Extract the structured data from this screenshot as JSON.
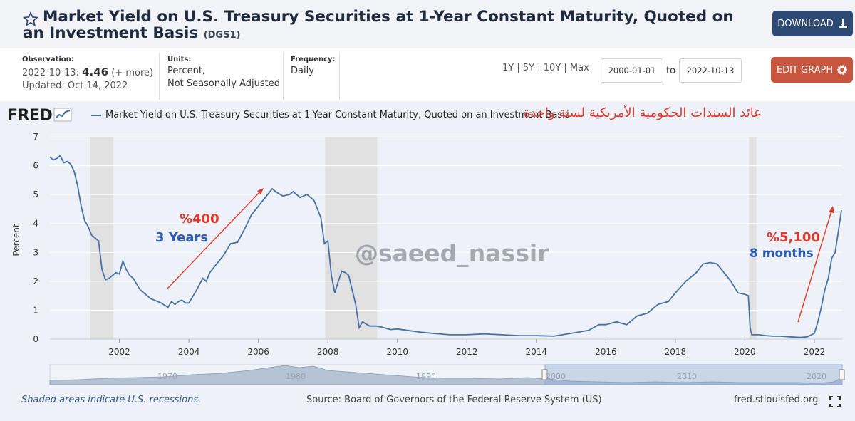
{
  "header": {
    "title": "Market Yield on U.S. Treasury Securities at 1-Year Constant Maturity, Quoted on an Investment Basis",
    "series_id": "(DGS1)",
    "download_label": "DOWNLOAD"
  },
  "meta": {
    "observation_label": "Observation:",
    "observation_date": "2022-10-13:",
    "observation_value": "4.46",
    "observation_more": "(+ more)",
    "updated": "Updated: Oct 14, 2022",
    "units_label": "Units:",
    "units_line1": "Percent,",
    "units_line2": "Not Seasonally Adjusted",
    "frequency_label": "Frequency:",
    "frequency_value": "Daily"
  },
  "controls": {
    "range_1y": "1Y",
    "range_5y": "5Y",
    "range_10y": "10Y",
    "range_max": "Max",
    "start_date": "2000-01-01",
    "to_label": "to",
    "end_date": "2022-10-13",
    "edit_graph_label": "EDIT GRAPH"
  },
  "chart_header": {
    "logo": "FRED",
    "legend_label": "Market Yield on U.S. Treasury Securities at 1-Year Constant Maturity, Quoted on an Investment Basis",
    "arabic_title": "عائد السندات الحكومية الأمريكية لسنة واحدة"
  },
  "annotations": {
    "left_pct": "%400",
    "left_period": "3 Years",
    "watermark": "@saeed_nassir",
    "right_pct": "%5,100",
    "right_period": "8 months"
  },
  "footer": {
    "recession_note": "Shaded areas indicate U.S. recessions.",
    "source": "Source: Board of Governors of the Federal Reserve System (US)",
    "site": "fred.stlouisfed.org"
  },
  "colors": {
    "series": "#4572a7",
    "recession": "#e1e1e1",
    "annotation_red": "#e03a2e",
    "annotation_blue": "#2a5cb8"
  },
  "chart_data": {
    "type": "line",
    "title": "Market Yield on U.S. Treasury Securities at 1-Year Constant Maturity, Quoted on an Investment Basis",
    "xlabel": "",
    "ylabel": "Percent",
    "xlim": [
      2000.0,
      2022.8
    ],
    "ylim": [
      0,
      7
    ],
    "x_ticks": [
      2002,
      2004,
      2006,
      2008,
      2010,
      2012,
      2014,
      2016,
      2018,
      2020,
      2022
    ],
    "y_ticks": [
      0,
      1,
      2,
      3,
      4,
      5,
      6,
      7
    ],
    "recessions": [
      [
        2001.17,
        2001.83
      ],
      [
        2007.92,
        2009.42
      ],
      [
        2020.12,
        2020.33
      ]
    ],
    "navigator_ticks": [
      "1970",
      "1980",
      "1990",
      "2000",
      "2010",
      "2020"
    ],
    "series": [
      {
        "name": "DGS1",
        "x": [
          2000.0,
          2000.1,
          2000.2,
          2000.3,
          2000.4,
          2000.5,
          2000.6,
          2000.7,
          2000.8,
          2000.9,
          2001.0,
          2001.1,
          2001.2,
          2001.3,
          2001.4,
          2001.5,
          2001.6,
          2001.7,
          2001.8,
          2001.9,
          2002.0,
          2002.1,
          2002.2,
          2002.3,
          2002.4,
          2002.5,
          2002.6,
          2002.7,
          2002.8,
          2002.9,
          2003.0,
          2003.2,
          2003.4,
          2003.5,
          2003.6,
          2003.7,
          2003.8,
          2003.9,
          2004.0,
          2004.2,
          2004.4,
          2004.5,
          2004.6,
          2004.8,
          2005.0,
          2005.2,
          2005.4,
          2005.6,
          2005.8,
          2006.0,
          2006.2,
          2006.4,
          2006.5,
          2006.7,
          2006.9,
          2007.0,
          2007.2,
          2007.4,
          2007.6,
          2007.8,
          2007.9,
          2008.0,
          2008.1,
          2008.2,
          2008.3,
          2008.4,
          2008.5,
          2008.6,
          2008.7,
          2008.8,
          2008.9,
          2009.0,
          2009.2,
          2009.4,
          2009.6,
          2009.8,
          2010.0,
          2010.3,
          2010.6,
          2011.0,
          2011.5,
          2012.0,
          2012.5,
          2013.0,
          2013.5,
          2014.0,
          2014.5,
          2015.0,
          2015.5,
          2015.8,
          2016.0,
          2016.3,
          2016.6,
          2016.9,
          2017.2,
          2017.5,
          2017.8,
          2018.0,
          2018.3,
          2018.6,
          2018.8,
          2019.0,
          2019.2,
          2019.4,
          2019.6,
          2019.8,
          2020.0,
          2020.1,
          2020.15,
          2020.2,
          2020.4,
          2020.6,
          2020.8,
          2021.0,
          2021.3,
          2021.6,
          2021.8,
          2022.0,
          2022.1,
          2022.2,
          2022.3,
          2022.4,
          2022.5,
          2022.6,
          2022.7,
          2022.78
        ],
        "y": [
          6.3,
          6.2,
          6.25,
          6.35,
          6.1,
          6.15,
          6.05,
          5.8,
          5.3,
          4.6,
          4.1,
          3.9,
          3.6,
          3.5,
          3.4,
          2.4,
          2.05,
          2.1,
          2.2,
          2.3,
          2.25,
          2.7,
          2.4,
          2.2,
          2.1,
          1.9,
          1.7,
          1.6,
          1.5,
          1.4,
          1.35,
          1.25,
          1.1,
          1.3,
          1.2,
          1.3,
          1.35,
          1.25,
          1.25,
          1.65,
          2.1,
          2.0,
          2.3,
          2.6,
          2.9,
          3.3,
          3.35,
          3.8,
          4.3,
          4.6,
          4.9,
          5.2,
          5.1,
          4.95,
          5.0,
          5.1,
          4.9,
          5.0,
          4.8,
          4.2,
          3.3,
          3.4,
          2.2,
          1.6,
          2.0,
          2.35,
          2.3,
          2.2,
          1.7,
          1.2,
          0.4,
          0.6,
          0.45,
          0.45,
          0.4,
          0.33,
          0.35,
          0.3,
          0.25,
          0.2,
          0.15,
          0.15,
          0.18,
          0.15,
          0.12,
          0.12,
          0.1,
          0.2,
          0.3,
          0.5,
          0.5,
          0.6,
          0.5,
          0.8,
          0.9,
          1.2,
          1.3,
          1.6,
          2.0,
          2.3,
          2.6,
          2.65,
          2.6,
          2.3,
          2.0,
          1.6,
          1.55,
          1.5,
          0.4,
          0.15,
          0.15,
          0.12,
          0.1,
          0.1,
          0.08,
          0.06,
          0.08,
          0.2,
          0.6,
          1.1,
          1.7,
          2.1,
          2.8,
          3.0,
          3.8,
          4.46
        ]
      }
    ]
  }
}
